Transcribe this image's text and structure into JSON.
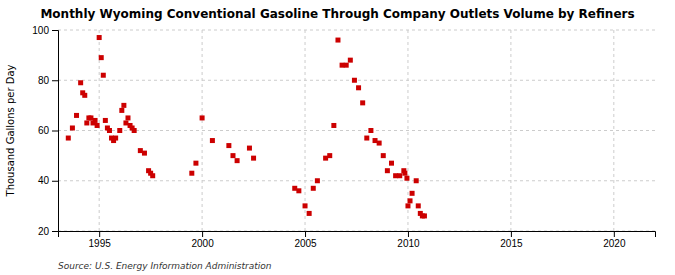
{
  "chart_data": {
    "type": "scatter",
    "title": "Monthly Wyoming Conventional Gasoline Through Company Outlets Volume by Refiners",
    "ylabel": "Thousand Gallons per Day",
    "annotations": [
      "Source: U.S. Energy Information Administration"
    ],
    "color": "#cc0000",
    "marker": "square",
    "grid": true,
    "xlim": [
      1993,
      2022
    ],
    "ylim": [
      20,
      100
    ],
    "xticks": [
      1995,
      2000,
      2005,
      2010,
      2015,
      2020
    ],
    "yticks": [
      20,
      40,
      60,
      80,
      100
    ],
    "x": [
      1993.5,
      1993.7,
      1993.9,
      1994.1,
      1994.2,
      1994.3,
      1994.4,
      1994.5,
      1994.6,
      1994.7,
      1994.8,
      1994.9,
      1995.0,
      1995.1,
      1995.2,
      1995.3,
      1995.4,
      1995.5,
      1995.6,
      1995.7,
      1995.8,
      1996.0,
      1996.1,
      1996.2,
      1996.3,
      1996.4,
      1996.5,
      1996.6,
      1996.7,
      1997.0,
      1997.2,
      1997.4,
      1997.5,
      1997.6,
      1999.5,
      1999.7,
      2000.0,
      2000.5,
      2001.3,
      2001.5,
      2001.7,
      2002.3,
      2002.5,
      2004.5,
      2004.7,
      2005.0,
      2005.2,
      2005.4,
      2005.6,
      2006.0,
      2006.2,
      2006.4,
      2006.6,
      2006.8,
      2007.0,
      2007.2,
      2007.4,
      2007.6,
      2007.8,
      2008.0,
      2008.2,
      2008.4,
      2008.6,
      2008.8,
      2009.0,
      2009.2,
      2009.4,
      2009.6,
      2009.8,
      2009.85,
      2009.95,
      2010.0,
      2010.1,
      2010.2,
      2010.4,
      2010.5,
      2010.6,
      2010.7,
      2010.8
    ],
    "values": [
      57,
      61,
      66,
      79,
      75,
      74,
      63,
      65,
      65,
      63,
      64,
      62,
      97,
      89,
      82,
      64,
      61,
      60,
      57,
      56,
      57,
      60,
      68,
      70,
      63,
      65,
      62,
      61,
      60,
      52,
      51,
      44,
      43,
      42,
      43,
      47,
      65,
      56,
      54,
      50,
      48,
      53,
      49,
      37,
      36,
      30,
      27,
      37,
      40,
      49,
      50,
      62,
      96,
      86,
      86,
      88,
      80,
      77,
      71,
      57,
      60,
      56,
      55,
      50,
      44,
      47,
      42,
      42,
      44,
      43,
      41,
      30,
      32,
      35,
      40,
      30,
      27,
      26,
      26
    ]
  }
}
